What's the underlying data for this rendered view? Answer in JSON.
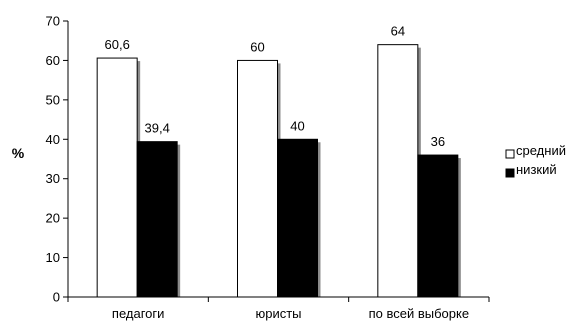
{
  "chart_data": {
    "type": "bar",
    "categories": [
      "педагоги",
      "юристы",
      "по всей выборке"
    ],
    "series": [
      {
        "name": "средний",
        "values": [
          60.6,
          60,
          64
        ],
        "labels": [
          "60,6",
          "60",
          "64"
        ],
        "color": "#ffffff"
      },
      {
        "name": "низкий",
        "values": [
          39.4,
          40,
          36
        ],
        "labels": [
          "39,4",
          "40",
          "36"
        ],
        "color": "#000000"
      }
    ],
    "title": "",
    "xlabel": "",
    "ylabel": "%",
    "ylim": [
      0,
      70
    ],
    "yticks": [
      0,
      10,
      20,
      30,
      40,
      50,
      60,
      70
    ],
    "grid": false,
    "legend_position": "right"
  }
}
